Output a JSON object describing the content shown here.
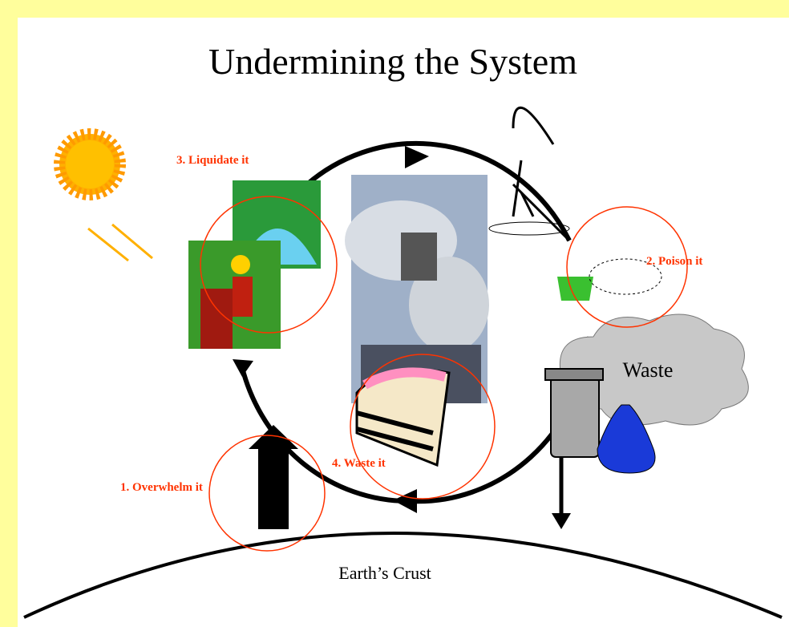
{
  "title": "Undermining the System",
  "labels": {
    "liquidate": "3. Liquidate it",
    "poison": "2. Poison it",
    "waste_cloud": "Waste",
    "waste_it": "4. Waste it",
    "overwhelm": "1. Overwhelm it",
    "crust": "Earth’s Crust"
  }
}
